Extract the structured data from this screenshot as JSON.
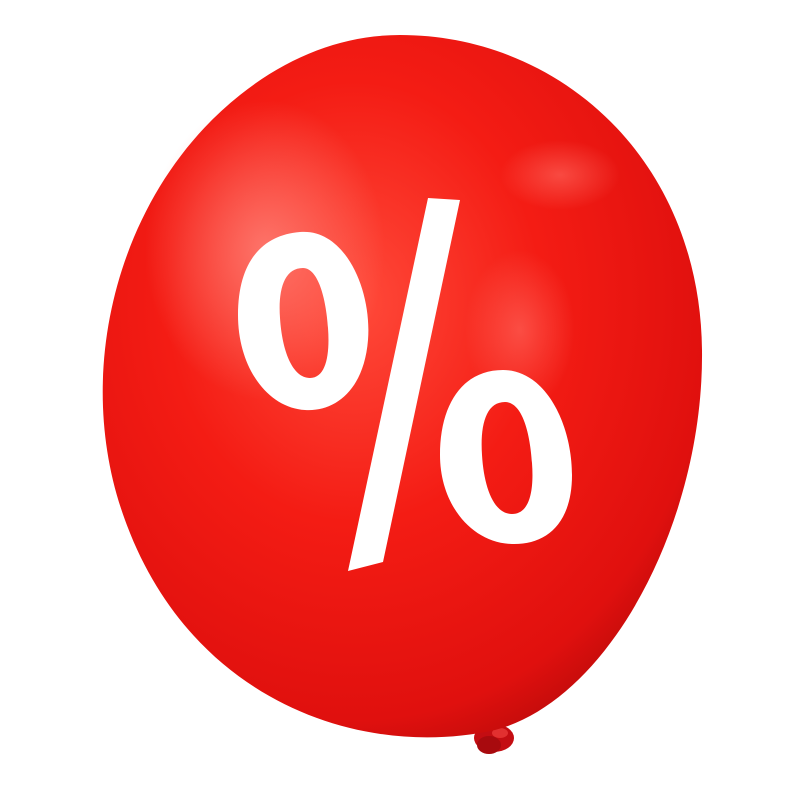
{
  "image": {
    "subject": "red-balloon",
    "balloon_color": "#f01414",
    "balloon_shadow_color": "#b80a0a",
    "highlight_color": "#ff6a6a",
    "knot_color": "#c40d12",
    "symbol_color": "#ffffff",
    "background_color": "#ffffff"
  },
  "balloon": {
    "symbol": "%"
  }
}
